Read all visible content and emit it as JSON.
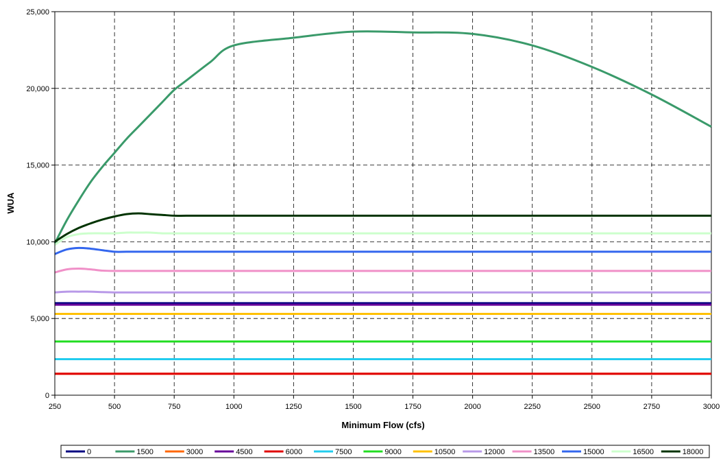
{
  "chart_data": {
    "type": "line",
    "title": "",
    "xlabel": "Minimum Flow (cfs)",
    "ylabel": "WUA",
    "xlim": [
      250,
      3000
    ],
    "ylim": [
      0,
      25000
    ],
    "x_ticks": [
      250,
      500,
      750,
      1000,
      1250,
      1500,
      1750,
      2000,
      2250,
      2500,
      2750,
      3000
    ],
    "x_tick_labels": [
      "250",
      "500",
      "750",
      "1000",
      "1250",
      "1500",
      "1750",
      "2000",
      "2250",
      "2500",
      "2750",
      "3000"
    ],
    "y_ticks": [
      0,
      5000,
      10000,
      15000,
      20000,
      25000
    ],
    "y_tick_labels": [
      "0",
      "5,000",
      "10,000",
      "15,000",
      "20,000",
      "25,000"
    ],
    "grid": true,
    "legend_position": "bottom",
    "x": [
      250,
      300,
      350,
      400,
      450,
      500,
      550,
      600,
      650,
      700,
      750,
      800,
      900,
      1000,
      1250,
      1500,
      1750,
      2000,
      2250,
      2500,
      2750,
      3000
    ],
    "series": [
      {
        "name": "0",
        "color": "#000080",
        "values": [
          6000,
          6000,
          6000,
          6000,
          6000,
          6000,
          6000,
          6000,
          6000,
          6000,
          6000,
          6000,
          6000,
          6000,
          6000,
          6000,
          6000,
          6000,
          6000,
          6000,
          6000,
          6000
        ]
      },
      {
        "name": "1500",
        "color": "#3a9a6a",
        "values": [
          9900,
          11400,
          12700,
          13900,
          14900,
          15800,
          16700,
          17500,
          18300,
          19100,
          19900,
          20500,
          21700,
          22800,
          23300,
          23700,
          23650,
          23550,
          22800,
          21400,
          19600,
          17500
        ]
      },
      {
        "name": "3000",
        "color": "#ff6600",
        "values": [
          1400,
          1400,
          1400,
          1400,
          1400,
          1400,
          1400,
          1400,
          1400,
          1400,
          1400,
          1400,
          1400,
          1400,
          1400,
          1400,
          1400,
          1400,
          1400,
          1400,
          1400,
          1400
        ]
      },
      {
        "name": "4500",
        "color": "#660099",
        "values": [
          5900,
          5900,
          5900,
          5900,
          5900,
          5900,
          5900,
          5900,
          5900,
          5900,
          5900,
          5900,
          5900,
          5900,
          5900,
          5900,
          5900,
          5900,
          5900,
          5900,
          5900,
          5900
        ]
      },
      {
        "name": "6000",
        "color": "#e00000",
        "values": [
          1400,
          1400,
          1400,
          1400,
          1400,
          1400,
          1400,
          1400,
          1400,
          1400,
          1400,
          1400,
          1400,
          1400,
          1400,
          1400,
          1400,
          1400,
          1400,
          1400,
          1400,
          1400
        ]
      },
      {
        "name": "7500",
        "color": "#22ccee",
        "values": [
          2350,
          2350,
          2350,
          2350,
          2350,
          2350,
          2350,
          2350,
          2350,
          2350,
          2350,
          2350,
          2350,
          2350,
          2350,
          2350,
          2350,
          2350,
          2350,
          2350,
          2350,
          2350
        ]
      },
      {
        "name": "9000",
        "color": "#22dd22",
        "values": [
          3500,
          3500,
          3500,
          3500,
          3500,
          3500,
          3500,
          3500,
          3500,
          3500,
          3500,
          3500,
          3500,
          3500,
          3500,
          3500,
          3500,
          3500,
          3500,
          3500,
          3500,
          3500
        ]
      },
      {
        "name": "10500",
        "color": "#ffc000",
        "values": [
          5300,
          5300,
          5300,
          5300,
          5300,
          5300,
          5300,
          5300,
          5300,
          5300,
          5300,
          5300,
          5300,
          5300,
          5300,
          5300,
          5300,
          5300,
          5300,
          5300,
          5300,
          5300
        ]
      },
      {
        "name": "12000",
        "color": "#b899e8",
        "values": [
          6700,
          6750,
          6750,
          6750,
          6720,
          6700,
          6700,
          6700,
          6700,
          6700,
          6700,
          6700,
          6700,
          6700,
          6700,
          6700,
          6700,
          6700,
          6700,
          6700,
          6700,
          6700
        ]
      },
      {
        "name": "13500",
        "color": "#f090c8",
        "values": [
          8000,
          8200,
          8250,
          8200,
          8120,
          8100,
          8100,
          8100,
          8100,
          8100,
          8100,
          8100,
          8100,
          8100,
          8100,
          8100,
          8100,
          8100,
          8100,
          8100,
          8100,
          8100
        ]
      },
      {
        "name": "15000",
        "color": "#3366ee",
        "values": [
          9200,
          9500,
          9600,
          9550,
          9450,
          9350,
          9350,
          9350,
          9350,
          9350,
          9350,
          9350,
          9350,
          9350,
          9350,
          9350,
          9350,
          9350,
          9350,
          9350,
          9350,
          9350
        ]
      },
      {
        "name": "16500",
        "color": "#ccffcc",
        "values": [
          9800,
          10300,
          10500,
          10550,
          10550,
          10550,
          10600,
          10600,
          10600,
          10550,
          10550,
          10550,
          10550,
          10550,
          10550,
          10550,
          10550,
          10550,
          10550,
          10550,
          10550,
          10550
        ]
      },
      {
        "name": "18000",
        "color": "#003300",
        "values": [
          10000,
          10500,
          10900,
          11200,
          11450,
          11650,
          11800,
          11850,
          11800,
          11750,
          11700,
          11700,
          11700,
          11700,
          11700,
          11700,
          11700,
          11700,
          11700,
          11700,
          11700,
          11700
        ]
      }
    ]
  }
}
